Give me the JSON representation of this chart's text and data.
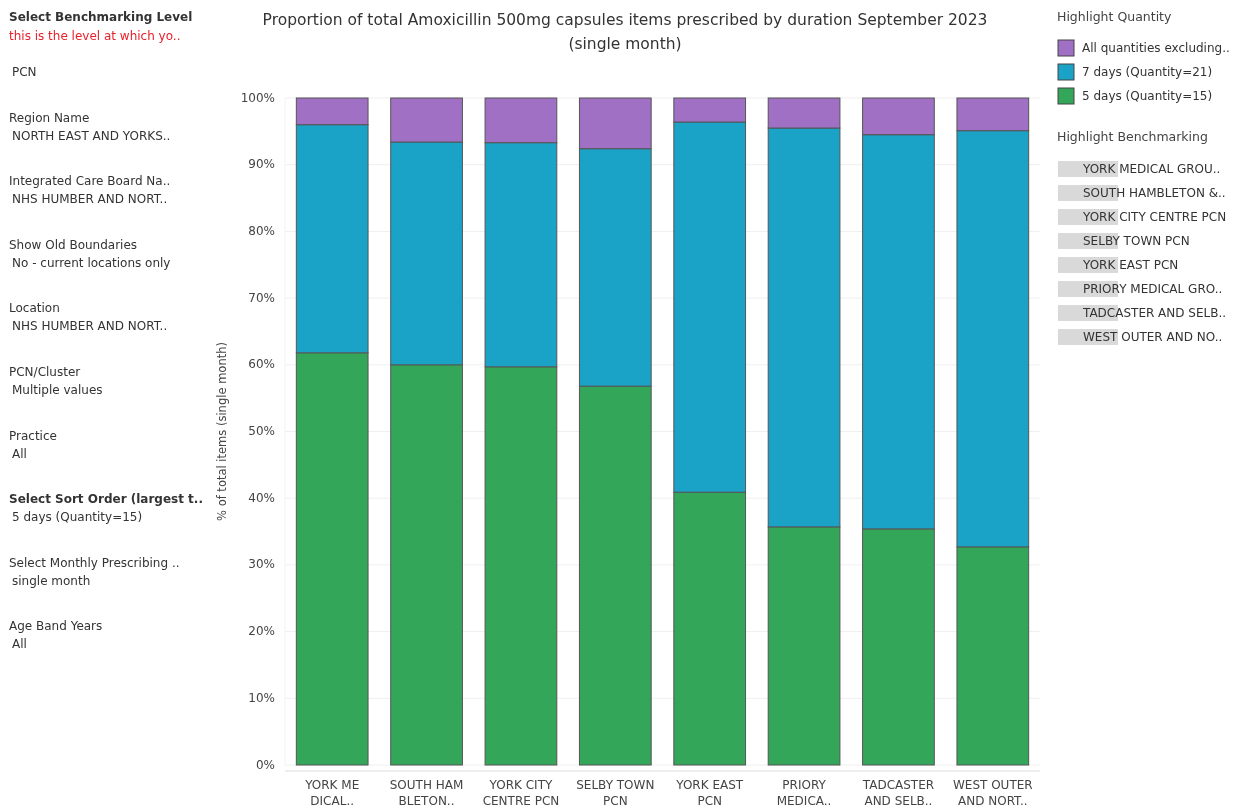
{
  "chart_data": [
    {
      "type": "other",
      "annotations": [
        "Select Benchmarking Level",
        "this is the level at which yo..",
        "PCN",
        "Region Name",
        "NORTH EAST AND YORKS..",
        "Integrated Care Board Na..",
        "NHS HUMBER AND NORT..",
        "Show Old Boundaries",
        "No - current locations only",
        "Location",
        "NHS HUMBER AND NORT..",
        "PCN/Cluster",
        "Multiple values",
        "Practice",
        "All",
        "Select Sort Order (largest t..",
        "5 days (Quantity=15)",
        "Select Monthly Prescribing ..",
        "single month",
        "Age Band Years",
        "All"
      ]
    },
    {
      "type": "bar",
      "stacked": true,
      "title": "Proportion of total Amoxicillin 500mg capsules items prescribed by duration September 2023\n(single month)",
      "ylabel": "% of total items (single month)",
      "legend_title": "Highlight Quantity",
      "legend": "right",
      "categories": [
        "YORK ME\nDICAL..",
        "SOUTH HAM\nBLETON..",
        "YORK CITY\nCENTRE PCN",
        "SELBY TOWN\nPCN",
        "YORK EAST\nPCN",
        "PRIORY\nMEDICA..",
        "TADCASTER\nAND SELB..",
        "WEST OUTER\nAND NORT.."
      ],
      "series": [
        {
          "name": "5 days (Quantity=15)",
          "color": "#34a65a",
          "values": [
            61.8,
            60.0,
            59.7,
            56.8,
            40.9,
            35.7,
            35.4,
            32.7
          ]
        },
        {
          "name": "7 days (Quantity=21)",
          "color": "#1aa3c6",
          "values": [
            34.2,
            33.4,
            33.6,
            35.6,
            55.5,
            59.8,
            59.1,
            62.4
          ]
        },
        {
          "name": "All quantities excluding..",
          "color": "#a070c4",
          "values": [
            4.0,
            6.6,
            6.7,
            7.6,
            3.6,
            4.5,
            5.5,
            4.9
          ]
        }
      ],
      "ylim": [
        0,
        100
      ],
      "yticks": [
        {
          "value": 0,
          "label": "0%"
        },
        {
          "value": 10,
          "label": "10%"
        },
        {
          "value": 20,
          "label": "20%"
        },
        {
          "value": 30,
          "label": "30%"
        },
        {
          "value": 40,
          "label": "40%"
        },
        {
          "value": 50,
          "label": "50%"
        },
        {
          "value": 60,
          "label": "60%"
        },
        {
          "value": 70,
          "label": "70%"
        },
        {
          "value": 80,
          "label": "80%"
        },
        {
          "value": 90,
          "label": "90%"
        },
        {
          "value": 100,
          "label": "100%"
        }
      ],
      "grid": "y"
    },
    {
      "type": "other",
      "title": "Highlight Benchmarking",
      "annotations": [
        "YORK MEDICAL GROU..",
        "SOUTH HAMBLETON &..",
        "YORK CITY CENTRE PCN",
        "SELBY TOWN PCN",
        "YORK EAST PCN",
        "PRIORY MEDICAL GRO..",
        "TADCASTER AND SELB..",
        "WEST OUTER AND NO.."
      ]
    }
  ]
}
